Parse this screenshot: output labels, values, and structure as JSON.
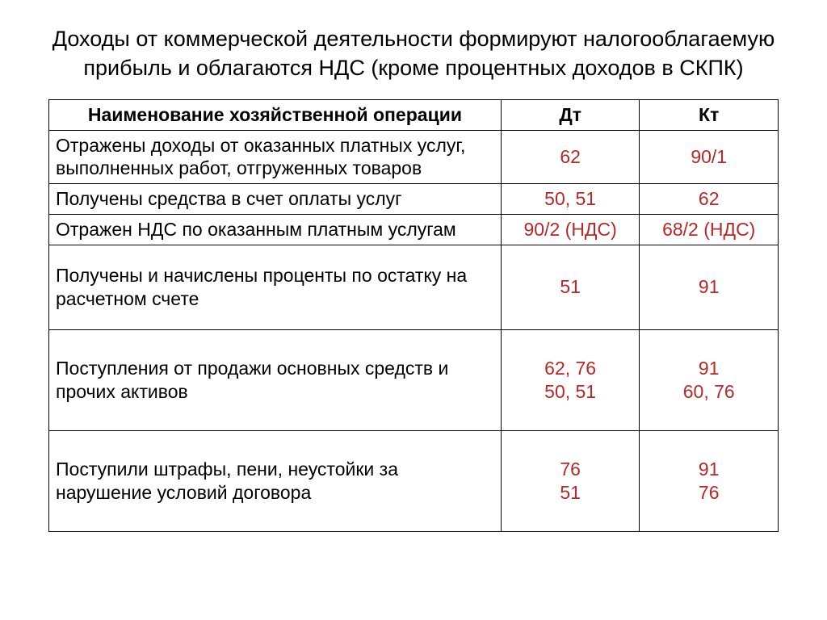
{
  "title": "Доходы от коммерческой деятельности формируют налогооблагаемую прибыль и облагаются НДС (кроме процентных доходов в СКПК)",
  "table": {
    "type": "table",
    "columns": [
      "Наименование хозяйственной операции",
      "Дт",
      "Кт"
    ],
    "col_widths_pct": [
      62,
      19,
      19
    ],
    "header_fontsize": 23,
    "cell_fontsize": 23,
    "border_color": "#000000",
    "background_color": "#ffffff",
    "text_color": "#000000",
    "value_color": "#b92828",
    "rows": [
      {
        "op": "Отражены доходы от оказанных платных услуг, выполненных работ, отгруженных товаров",
        "dt": "62",
        "kt": "90/1",
        "row_class": ""
      },
      {
        "op": "Получены средства в счет оплаты услуг",
        "dt": "50, 51",
        "kt": "62",
        "row_class": ""
      },
      {
        "op": "Отражен НДС по оказанным платным услугам",
        "dt": "90/2 (НДС)",
        "kt": "68/2 (НДС)",
        "row_class": ""
      },
      {
        "op": "Получены и начислены проценты по остатку на расчетном счете",
        "dt": "51",
        "kt": "91",
        "row_class": "tall"
      },
      {
        "op": "Поступления от продажи основных средств и прочих активов",
        "dt": "62, 76\n50, 51",
        "kt": "91\n60, 76",
        "row_class": "taller"
      },
      {
        "op": "Поступили штрафы, пени, неустойки за нарушение условий договора",
        "dt": "76\n51",
        "kt": "91\n76",
        "row_class": "taller"
      }
    ]
  }
}
